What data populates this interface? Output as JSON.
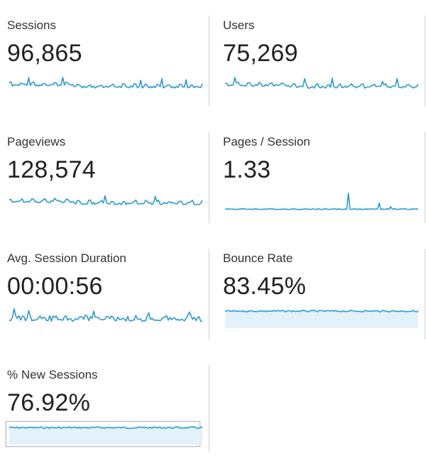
{
  "colors": {
    "line": "#2a9bd1",
    "fill": "#e3f1fa",
    "divider": "#cfcfcf"
  },
  "metrics": [
    {
      "id": "sessions",
      "label": "Sessions",
      "value": "96,865",
      "chart_style": "dense-line"
    },
    {
      "id": "users",
      "label": "Users",
      "value": "75,269",
      "chart_style": "dense-line"
    },
    {
      "id": "pageviews",
      "label": "Pageviews",
      "value": "128,574",
      "chart_style": "dense-line"
    },
    {
      "id": "pages_per_session",
      "label": "Pages / Session",
      "value": "1.33",
      "chart_style": "flat-spikes"
    },
    {
      "id": "avg_session_duration",
      "label": "Avg. Session Duration",
      "value": "00:00:56",
      "chart_style": "noisy-line"
    },
    {
      "id": "bounce_rate",
      "label": "Bounce Rate",
      "value": "83.45%",
      "chart_style": "area"
    },
    {
      "id": "new_sessions_pct",
      "label": "% New Sessions",
      "value": "76.92%",
      "chart_style": "area",
      "selected": true
    }
  ]
}
